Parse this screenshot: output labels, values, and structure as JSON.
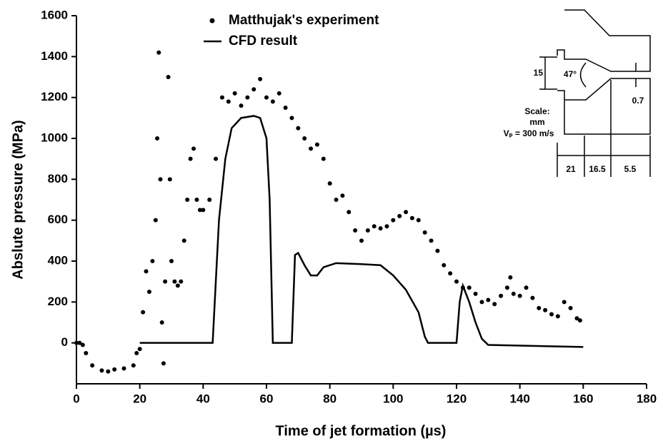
{
  "chart_data": {
    "type": "line",
    "x_label": "Time of jet formation  (µs)",
    "y_label": "Abslute pressure (MPa)",
    "xlim": [
      0,
      180
    ],
    "ylim": [
      -200,
      1600
    ],
    "xticks": [
      0,
      20,
      40,
      60,
      80,
      100,
      120,
      140,
      160,
      180
    ],
    "yticks": [
      0,
      200,
      400,
      600,
      800,
      1000,
      1200,
      1400,
      1600
    ],
    "legend": "top",
    "series": [
      {
        "name": "Matthujak's experiment",
        "type": "scatter",
        "color": "#000000",
        "x": [
          0,
          1,
          2,
          3,
          5,
          8,
          10,
          12,
          15,
          18,
          19,
          20,
          21,
          22,
          23,
          24,
          25,
          25.5,
          26,
          26.5,
          27,
          27.5,
          28,
          29,
          29.5,
          30,
          31,
          32,
          33,
          34,
          35,
          36,
          37,
          38,
          39,
          40,
          42,
          44,
          46,
          48,
          50,
          52,
          54,
          56,
          58,
          60,
          62,
          64,
          66,
          68,
          70,
          72,
          74,
          76,
          78,
          80,
          82,
          84,
          86,
          88,
          90,
          92,
          94,
          96,
          98,
          100,
          102,
          104,
          106,
          108,
          110,
          112,
          114,
          116,
          118,
          120,
          122,
          124,
          126,
          128,
          130,
          132,
          134,
          136,
          137,
          138,
          140,
          142,
          144,
          146,
          148,
          150,
          152,
          154,
          156,
          158,
          159
        ],
        "values": [
          0,
          0,
          -10,
          -50,
          -110,
          -135,
          -140,
          -130,
          -125,
          -110,
          -50,
          -30,
          150,
          350,
          250,
          400,
          600,
          1000,
          1420,
          800,
          100,
          -100,
          300,
          1300,
          800,
          400,
          300,
          280,
          300,
          500,
          700,
          900,
          950,
          700,
          650,
          650,
          700,
          900,
          1200,
          1180,
          1220,
          1160,
          1200,
          1240,
          1290,
          1200,
          1180,
          1220,
          1150,
          1100,
          1050,
          1000,
          950,
          970,
          900,
          780,
          700,
          720,
          640,
          550,
          500,
          550,
          570,
          560,
          570,
          600,
          620,
          640,
          610,
          600,
          540,
          500,
          450,
          380,
          340,
          300,
          270,
          270,
          240,
          200,
          210,
          190,
          230,
          270,
          320,
          240,
          230,
          270,
          220,
          170,
          160,
          140,
          130,
          200,
          170,
          120,
          110
        ]
      },
      {
        "name": "CFD result",
        "type": "line",
        "color": "#000000",
        "x": [
          20,
          43,
          45,
          47,
          49,
          52,
          56,
          58,
          60,
          61,
          62,
          68,
          69,
          70,
          72,
          74,
          76,
          78,
          82,
          90,
          96,
          100,
          104,
          108,
          110,
          111,
          120,
          121,
          122,
          124,
          126,
          128,
          130,
          160
        ],
        "values": [
          0,
          0,
          600,
          900,
          1050,
          1100,
          1110,
          1100,
          1000,
          700,
          0,
          0,
          430,
          440,
          380,
          330,
          330,
          370,
          390,
          385,
          380,
          330,
          260,
          150,
          30,
          0,
          0,
          200,
          280,
          200,
          100,
          20,
          -10,
          -20
        ]
      }
    ],
    "inset_labels": [
      "15",
      "47°",
      "0.7",
      "Scale:",
      "mm",
      "Vₚ = 300 m/s",
      "21",
      "16.5",
      "5.5"
    ]
  }
}
